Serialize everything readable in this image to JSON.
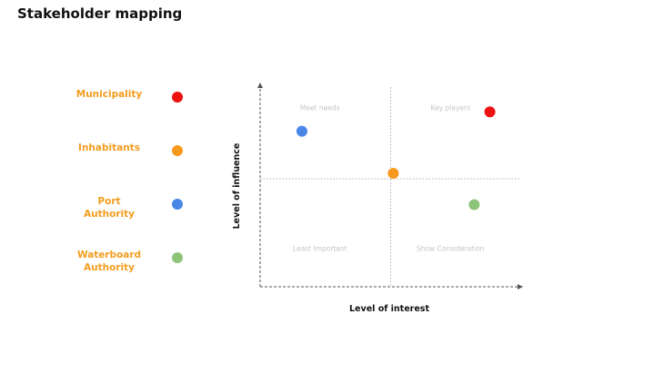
{
  "title": "Stakeholder mapping",
  "colors": {
    "label": "#f29d1e",
    "axis": "#555555",
    "grid": "#999999",
    "quadrant_text": "#c4c4c4"
  },
  "chart_data": {
    "type": "scatter",
    "xlabel": "Level of interest",
    "ylabel": "Level of influence",
    "xlim": [
      0,
      10
    ],
    "ylim": [
      0,
      10
    ],
    "dividers": {
      "x": 5,
      "y": 5
    },
    "quadrants": [
      {
        "label": "Meet needs",
        "x": 2.5,
        "y": 7.5
      },
      {
        "label": "Key players",
        "x": 7.5,
        "y": 7.5
      },
      {
        "label": "Least Important",
        "x": 2.5,
        "y": 2.5
      },
      {
        "label": "Show Consideration",
        "x": 7.5,
        "y": 2.5
      }
    ],
    "series": [
      {
        "name": "Municipality",
        "color": "#ee1111",
        "x": 8.8,
        "y": 8.1
      },
      {
        "name": "Inhabitants",
        "color": "#f7991c",
        "x": 5.1,
        "y": 5.25
      },
      {
        "name": "Port Authority",
        "color": "#4a86e8",
        "x": 1.6,
        "y": 7.2
      },
      {
        "name": "Waterboard Authority",
        "color": "#8dc47a",
        "x": 8.2,
        "y": 3.8
      }
    ]
  },
  "legend": [
    {
      "lines": [
        "Municipality"
      ],
      "color": "#ee1111"
    },
    {
      "lines": [
        "Inhabitants"
      ],
      "color": "#f7991c"
    },
    {
      "lines": [
        "Port",
        "Authority"
      ],
      "color": "#4a86e8"
    },
    {
      "lines": [
        "Waterboard",
        "Authority"
      ],
      "color": "#8dc47a"
    }
  ]
}
